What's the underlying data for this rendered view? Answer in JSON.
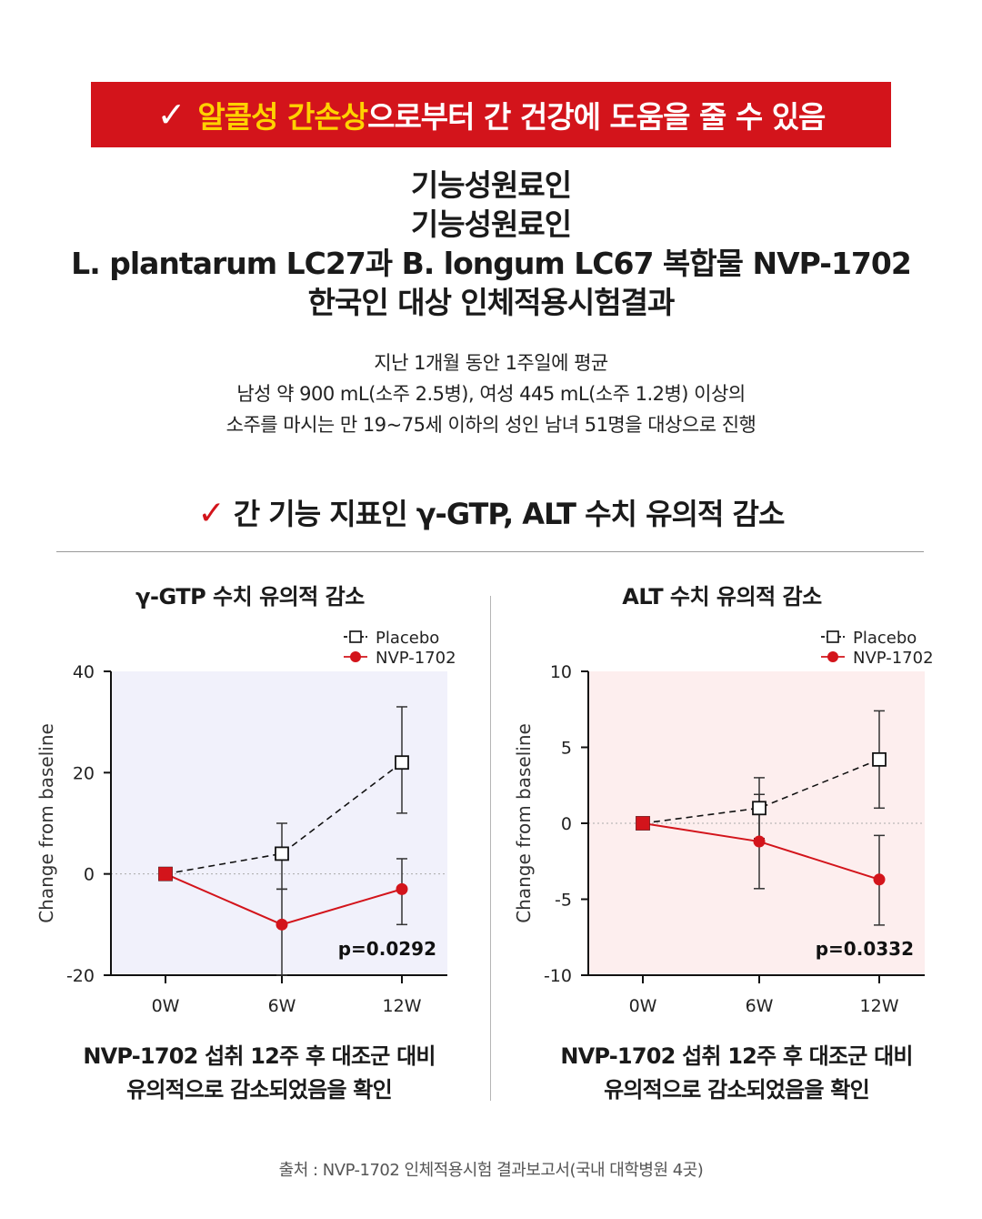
{
  "banner": {
    "check_icon": "checkmark-icon",
    "highlight": "알콜성 간손상",
    "rest": "으로부터 간 건강에 도움을 줄 수 있음",
    "bg_color": "#d3141b",
    "highlight_color": "#ffd200"
  },
  "titles": [
    "기능성원료인",
    "기능성원료인",
    "L. plantarum LC27과 B. longum LC67 복합물 NVP-1702",
    "한국인 대상 인체적용시험결과"
  ],
  "description": [
    "지난 1개월 동안 1주일에 평균",
    "남성 약 900 mL(소주 2.5병), 여성 445 mL(소주 1.2병) 이상의",
    "소주를 마시는 만 19~75세 이하의 성인 남녀 51명을 대상으로 진행"
  ],
  "section_heading": "간 기능 지표인 γ-GTP, ALT 수치 유의적 감소",
  "chart_data": [
    {
      "type": "line",
      "title": "γ-GTP 수치 유의적 감소",
      "ylabel": "Change from baseline",
      "categories": [
        "0W",
        "6W",
        "12W"
      ],
      "yticks": [
        40,
        20,
        0,
        -20
      ],
      "ylim": [
        -20,
        40
      ],
      "series": [
        {
          "name": "Placebo",
          "values": [
            0,
            4,
            22
          ],
          "err_low": [
            0,
            7,
            10
          ],
          "err_high": [
            0,
            6,
            11
          ],
          "color": "#111111",
          "marker": "open-square",
          "line": "dashed"
        },
        {
          "name": "NVP-1702",
          "values": [
            0,
            -10,
            -3
          ],
          "err_low": [
            0,
            10,
            7
          ],
          "err_high": [
            0,
            7,
            6
          ],
          "color": "#d3141b",
          "marker": "filled-circle",
          "line": "solid"
        }
      ],
      "p_value": "p=0.0292",
      "plot_bg": "#f1f1fb",
      "legend_position": "top-right",
      "zero_line": true,
      "caption": [
        "NVP-1702 섭취 12주 후 대조군 대비",
        "유의적으로 감소되었음을 확인"
      ]
    },
    {
      "type": "line",
      "title": "ALT 수치 유의적 감소",
      "ylabel": "Change from baseline",
      "categories": [
        "0W",
        "6W",
        "12W"
      ],
      "yticks": [
        10,
        5,
        0,
        -5,
        -10
      ],
      "ylim": [
        -10,
        10
      ],
      "series": [
        {
          "name": "Placebo",
          "values": [
            0,
            1,
            4.2
          ],
          "err_low": [
            0,
            2,
            3.2
          ],
          "err_high": [
            0,
            2,
            3.2
          ],
          "color": "#111111",
          "marker": "open-square",
          "line": "dashed"
        },
        {
          "name": "NVP-1702",
          "values": [
            0,
            -1.2,
            -3.7
          ],
          "err_low": [
            0,
            3.1,
            3.0
          ],
          "err_high": [
            0,
            3.1,
            2.9
          ],
          "color": "#d3141b",
          "marker": "filled-circle",
          "line": "solid"
        }
      ],
      "p_value": "p=0.0332",
      "plot_bg": "#fdeeee",
      "legend_position": "top-right",
      "zero_line": true,
      "caption": [
        "NVP-1702 섭취 12주 후 대조군 대비",
        "유의적으로 감소되었음을 확인"
      ]
    }
  ],
  "source": "출처 : NVP-1702 인체적용시험 결과보고서(국내 대학병원 4곳)"
}
